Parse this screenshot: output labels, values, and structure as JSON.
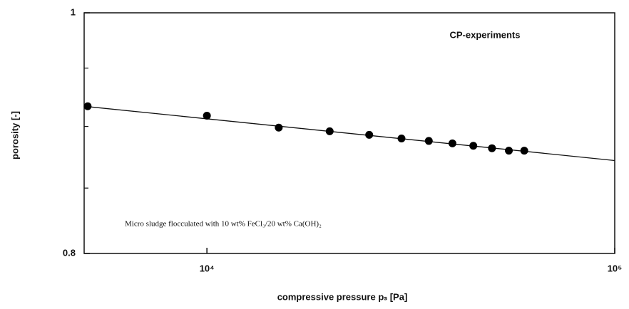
{
  "chart_data": {
    "type": "scatter",
    "x_label": "compressive pressure pₛ [Pa]",
    "y_label": "porosity [-]",
    "annotations": [
      "CP-experiments",
      "Micro sludge flocculated with 10 wt% FeCl₃/20 wt% Ca(OH)₂"
    ],
    "series": [
      {
        "name": null,
        "color": "#000000",
        "x": [
          5100,
          10000,
          15000,
          20000,
          25000,
          30000,
          35000,
          40000,
          45000,
          50000,
          55000,
          60000
        ],
        "values": [
          0.917,
          0.909,
          0.899,
          0.896,
          0.893,
          0.89,
          0.888,
          0.886,
          0.884,
          0.882,
          0.88,
          0.88
        ]
      }
    ],
    "fit_line": {
      "x": [
        5000,
        100000
      ],
      "y": [
        0.917,
        0.872
      ]
    },
    "xlim": [
      5000,
      100000
    ],
    "xlog": true,
    "xticks": [
      {
        "value": 10000,
        "label": "10⁴"
      },
      {
        "value": 100000,
        "label": "10⁵"
      }
    ],
    "ylim": [
      0.8,
      1
    ],
    "ylog": true,
    "yticks": [
      0.8,
      1
    ],
    "y_minor_ticks": [
      0.85,
      0.9,
      0.95
    ],
    "grid": false
  }
}
